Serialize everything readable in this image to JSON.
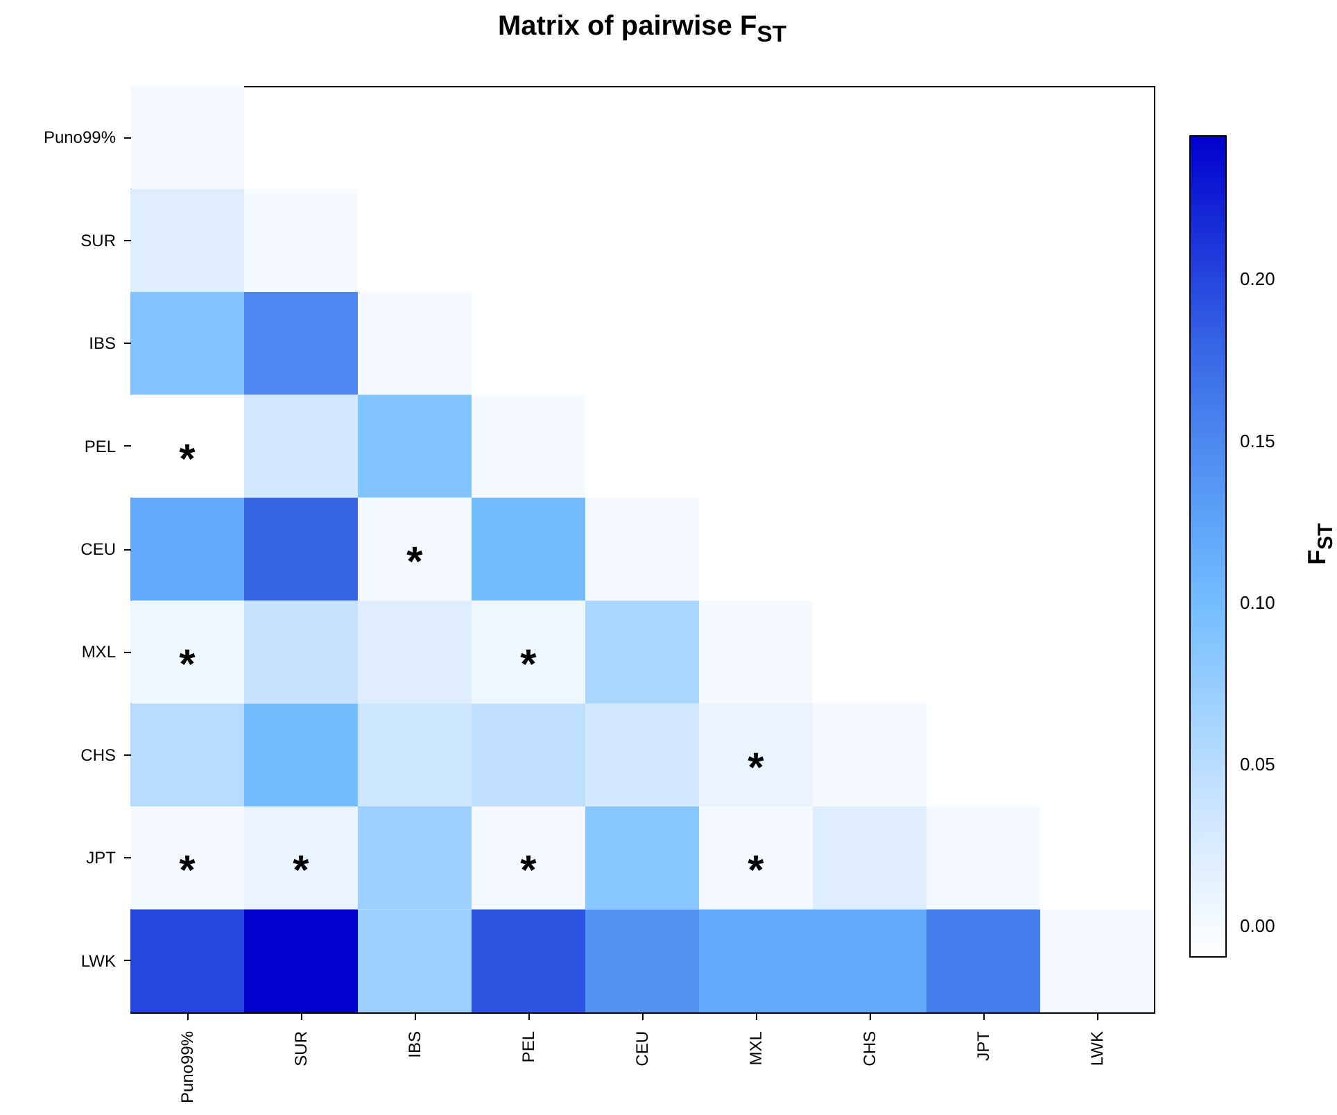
{
  "chart_data": {
    "type": "heatmap",
    "title": "Matrix of pairwise F$_{ST}$",
    "clabel": "F$_{ST}$",
    "categories": [
      "Puno99%",
      "SUR",
      "IBS",
      "PEL",
      "CEU",
      "MXL",
      "CHS",
      "JPT",
      "LWK"
    ],
    "y_categories": [
      "Puno99%",
      "SUR",
      "IBS",
      "PEL",
      "CEU",
      "MXL",
      "CHS",
      "JPT",
      "LWK"
    ],
    "cells": [
      [
        0.0,
        null,
        null,
        null,
        null,
        null,
        null,
        null,
        null
      ],
      [
        0.02,
        0.0,
        null,
        null,
        null,
        null,
        null,
        null,
        null
      ],
      [
        0.09,
        0.15,
        0.0,
        null,
        null,
        null,
        null,
        null,
        null
      ],
      [
        -0.01,
        0.03,
        0.09,
        0.0,
        null,
        null,
        null,
        null,
        null
      ],
      [
        0.12,
        0.18,
        0.0,
        0.1,
        0.0,
        null,
        null,
        null,
        null
      ],
      [
        0.005,
        0.04,
        0.02,
        0.005,
        0.06,
        0.0,
        null,
        null,
        null
      ],
      [
        0.05,
        0.1,
        0.035,
        0.045,
        0.03,
        0.01,
        0.0,
        null,
        null
      ],
      [
        0.0,
        0.01,
        0.07,
        0.0,
        0.085,
        0.0,
        0.02,
        0.0,
        null
      ],
      [
        0.2,
        0.245,
        0.07,
        0.19,
        0.14,
        0.12,
        0.12,
        0.16,
        0.0
      ]
    ],
    "cell_labels": [
      [
        null,
        null,
        null,
        null,
        null,
        null,
        null,
        null,
        null
      ],
      [
        null,
        null,
        null,
        null,
        null,
        null,
        null,
        null,
        null
      ],
      [
        null,
        null,
        null,
        null,
        null,
        null,
        null,
        null,
        null
      ],
      [
        "*",
        null,
        null,
        null,
        null,
        null,
        null,
        null,
        null
      ],
      [
        null,
        null,
        "*",
        null,
        null,
        null,
        null,
        null,
        null
      ],
      [
        "*",
        null,
        null,
        "*",
        null,
        null,
        null,
        null,
        null
      ],
      [
        null,
        null,
        null,
        null,
        null,
        "*",
        null,
        null,
        null
      ],
      [
        "*",
        "*",
        null,
        "*",
        null,
        "*",
        null,
        null,
        null
      ],
      [
        null,
        null,
        null,
        null,
        null,
        null,
        null,
        null,
        null
      ]
    ],
    "clim": [
      -0.0095,
      0.2445
    ],
    "cticks": [
      {
        "value": 0,
        "label": "0.00"
      },
      {
        "value": 0.05,
        "label": "0.05"
      },
      {
        "value": 0.1,
        "label": "0.10"
      },
      {
        "value": 0.15,
        "label": "0.15"
      },
      {
        "value": 0.2,
        "label": "0.20"
      }
    ]
  }
}
